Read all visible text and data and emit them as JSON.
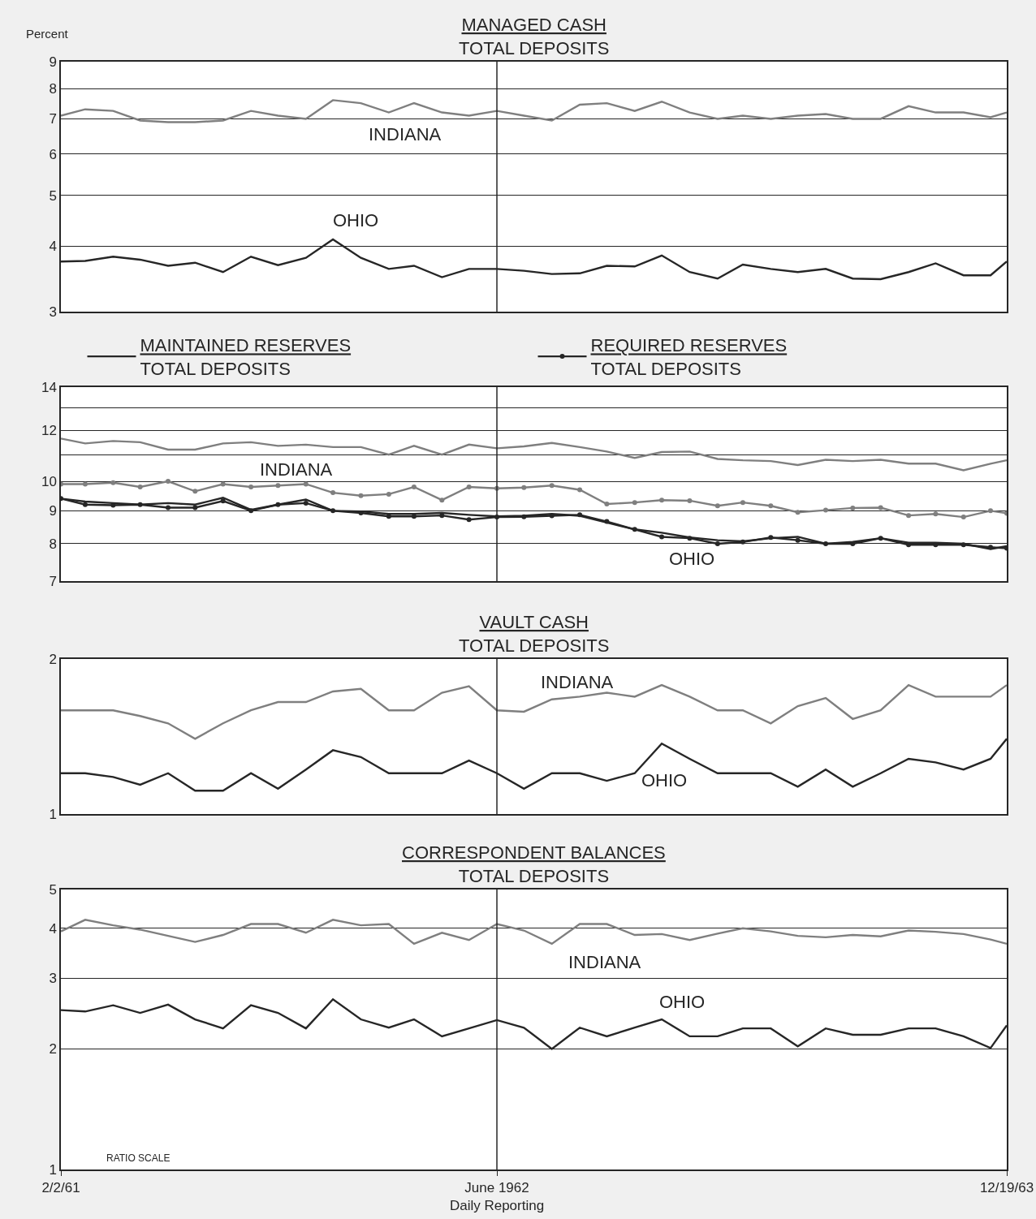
{
  "chart_data": [
    {
      "type": "line",
      "title": "MANAGED CASH\nTOTAL DEPOSITS",
      "ylabel": "Percent",
      "log": true,
      "grid": "y",
      "tick_labels": "y",
      "x": [
        "1961-02-02",
        "1961-03-01",
        "1961-04-01",
        "1961-05-01",
        "1961-06-01",
        "1961-07-01",
        "1961-08-01",
        "1961-09-01",
        "1961-10-01",
        "1961-11-01",
        "1961-12-01",
        "1962-01-01",
        "1962-02-01",
        "1962-03-01",
        "1962-04-01",
        "1962-05-01",
        "1962-06-01",
        "1962-07-01",
        "1962-08-01",
        "1962-09-01",
        "1962-10-01",
        "1962-11-01",
        "1962-12-01",
        "1963-01-01",
        "1963-02-01",
        "1963-03-01",
        "1963-04-01",
        "1963-05-01",
        "1963-06-01",
        "1963-07-01",
        "1963-08-01",
        "1963-09-01",
        "1963-10-01",
        "1963-11-01",
        "1963-12-01",
        "1963-12-19"
      ],
      "xlim": [
        "1961-02-02",
        "1963-12-19"
      ],
      "ylim": [
        3,
        9
      ],
      "yticks": [
        3,
        4,
        5,
        6,
        7,
        8,
        9
      ],
      "ref_lines": [
        {
          "axis": "x",
          "value": "1962-06-01"
        }
      ],
      "annotations": [
        "INDIANA",
        "OHIO"
      ],
      "series": [
        {
          "color": "#7f7f7f",
          "values": [
            7.1,
            7.3,
            7.25,
            6.95,
            6.9,
            6.9,
            6.95,
            7.25,
            7.1,
            7.0,
            7.6,
            7.5,
            7.2,
            7.5,
            7.2,
            7.1,
            7.25,
            7.1,
            6.95,
            7.45,
            7.5,
            7.25,
            7.55,
            7.2,
            7.0,
            7.1,
            7.0,
            7.1,
            7.15,
            7.0,
            7.0,
            7.4,
            7.2,
            7.2,
            7.05,
            7.2
          ]
        },
        {
          "color": "#262626",
          "values": [
            3.74,
            3.75,
            3.82,
            3.77,
            3.67,
            3.72,
            3.57,
            3.82,
            3.68,
            3.8,
            4.12,
            3.8,
            3.62,
            3.67,
            3.49,
            3.62,
            3.62,
            3.59,
            3.54,
            3.55,
            3.67,
            3.66,
            3.84,
            3.57,
            3.47,
            3.69,
            3.62,
            3.57,
            3.62,
            3.47,
            3.46,
            3.57,
            3.71,
            3.52,
            3.52,
            3.74
          ]
        }
      ]
    },
    {
      "type": "line",
      "log": true,
      "grid": "y",
      "tick_labels": "y",
      "legend": "top",
      "x": [
        "1961-02-02",
        "1961-03-01",
        "1961-04-01",
        "1961-05-01",
        "1961-06-01",
        "1961-07-01",
        "1961-08-01",
        "1961-09-01",
        "1961-10-01",
        "1961-11-01",
        "1961-12-01",
        "1962-01-01",
        "1962-02-01",
        "1962-03-01",
        "1962-04-01",
        "1962-05-01",
        "1962-06-01",
        "1962-07-01",
        "1962-08-01",
        "1962-09-01",
        "1962-10-01",
        "1962-11-01",
        "1962-12-01",
        "1963-01-01",
        "1963-02-01",
        "1963-03-01",
        "1963-04-01",
        "1963-05-01",
        "1963-06-01",
        "1963-07-01",
        "1963-08-01",
        "1963-09-01",
        "1963-10-01",
        "1963-11-01",
        "1963-12-01",
        "1963-12-19"
      ],
      "xlim": [
        "1961-02-02",
        "1963-12-19"
      ],
      "ylim": [
        7,
        14
      ],
      "yticks": [
        7,
        8,
        9,
        10,
        {
          "value": 11,
          "label": null
        },
        12,
        {
          "value": 13,
          "label": null
        },
        14
      ],
      "ref_lines": [
        {
          "axis": "x",
          "value": "1962-06-01"
        }
      ],
      "annotations": [
        "INDIANA",
        "OHIO"
      ],
      "series": [
        {
          "name": "MAINTAINED RESERVES\nTOTAL DEPOSITS",
          "color": "#262626",
          "values": [
            9.4,
            9.3,
            9.25,
            9.2,
            9.25,
            9.2,
            9.43,
            9.03,
            9.2,
            9.37,
            9.0,
            8.98,
            8.9,
            8.9,
            8.93,
            8.87,
            8.82,
            8.84,
            8.9,
            8.84,
            8.63,
            8.42,
            8.32,
            8.18,
            8.1,
            8.07,
            8.16,
            8.2,
            8.0,
            8.05,
            8.16,
            8.03,
            8.03,
            8.0,
            7.85,
            7.93
          ]
        },
        {
          "color": "#7f7f7f",
          "values": [
            11.65,
            11.45,
            11.55,
            11.5,
            11.2,
            11.2,
            11.45,
            11.5,
            11.35,
            11.4,
            11.3,
            11.3,
            11.0,
            11.35,
            11.0,
            11.4,
            11.25,
            11.33,
            11.47,
            11.3,
            11.12,
            10.87,
            11.1,
            11.12,
            10.83,
            10.78,
            10.75,
            10.6,
            10.8,
            10.75,
            10.8,
            10.65,
            10.65,
            10.4,
            10.65,
            10.78
          ]
        },
        {
          "name": "REQUIRED RESERVES\nTOTAL DEPOSITS",
          "color": "#262626",
          "marker": "circle",
          "values": [
            9.4,
            9.2,
            9.18,
            9.2,
            9.1,
            9.1,
            9.32,
            9.0,
            9.2,
            9.25,
            9.0,
            8.93,
            8.82,
            8.82,
            8.85,
            8.72,
            8.8,
            8.81,
            8.84,
            8.87,
            8.66,
            8.42,
            8.2,
            8.16,
            8.0,
            8.05,
            8.18,
            8.1,
            8.0,
            8.0,
            8.16,
            7.97,
            7.97,
            7.97,
            7.9,
            7.87
          ]
        },
        {
          "color": "#7f7f7f",
          "marker": "circle",
          "values": [
            9.9,
            9.9,
            9.95,
            9.8,
            10.0,
            9.65,
            9.9,
            9.8,
            9.85,
            9.9,
            9.6,
            9.5,
            9.55,
            9.8,
            9.35,
            9.8,
            9.75,
            9.78,
            9.85,
            9.7,
            9.22,
            9.27,
            9.35,
            9.33,
            9.16,
            9.27,
            9.16,
            8.95,
            9.02,
            9.09,
            9.1,
            8.85,
            8.9,
            8.8,
            9.0,
            8.92
          ]
        }
      ]
    },
    {
      "type": "line",
      "title": "VAULT CASH\nTOTAL DEPOSITS",
      "log": true,
      "tick_labels": "y",
      "x": [
        "1961-02-02",
        "1961-03-01",
        "1961-04-01",
        "1961-05-01",
        "1961-06-01",
        "1961-07-01",
        "1961-08-01",
        "1961-09-01",
        "1961-10-01",
        "1961-11-01",
        "1961-12-01",
        "1962-01-01",
        "1962-02-01",
        "1962-03-01",
        "1962-04-01",
        "1962-05-01",
        "1962-06-01",
        "1962-07-01",
        "1962-08-01",
        "1962-09-01",
        "1962-10-01",
        "1962-11-01",
        "1962-12-01",
        "1963-01-01",
        "1963-02-01",
        "1963-03-01",
        "1963-04-01",
        "1963-05-01",
        "1963-06-01",
        "1963-07-01",
        "1963-08-01",
        "1963-09-01",
        "1963-10-01",
        "1963-11-01",
        "1963-12-01",
        "1963-12-19"
      ],
      "xlim": [
        "1961-02-02",
        "1963-12-19"
      ],
      "ylim": [
        1,
        2
      ],
      "yticks": [
        1,
        2
      ],
      "ref_lines": [
        {
          "axis": "x",
          "value": "1962-06-01"
        }
      ],
      "annotations": [
        "INDIANA",
        "OHIO"
      ],
      "series": [
        {
          "color": "#7f7f7f",
          "values": [
            1.59,
            1.59,
            1.59,
            1.55,
            1.5,
            1.4,
            1.5,
            1.59,
            1.65,
            1.65,
            1.73,
            1.75,
            1.59,
            1.59,
            1.72,
            1.77,
            1.59,
            1.58,
            1.67,
            1.69,
            1.72,
            1.69,
            1.78,
            1.69,
            1.59,
            1.59,
            1.5,
            1.62,
            1.68,
            1.53,
            1.59,
            1.78,
            1.69,
            1.69,
            1.69,
            1.78
          ]
        },
        {
          "color": "#262626",
          "values": [
            1.2,
            1.2,
            1.18,
            1.14,
            1.2,
            1.11,
            1.11,
            1.2,
            1.12,
            1.22,
            1.33,
            1.29,
            1.2,
            1.2,
            1.2,
            1.27,
            1.2,
            1.12,
            1.2,
            1.2,
            1.16,
            1.2,
            1.37,
            1.28,
            1.2,
            1.2,
            1.2,
            1.13,
            1.22,
            1.13,
            1.2,
            1.28,
            1.26,
            1.22,
            1.28,
            1.4
          ]
        }
      ]
    },
    {
      "type": "line",
      "title": "CORRESPONDENT BALANCES\nTOTAL DEPOSITS",
      "log": true,
      "grid": "y",
      "x": [
        "1961-02-02",
        "1961-03-01",
        "1961-04-01",
        "1961-05-01",
        "1961-06-01",
        "1961-07-01",
        "1961-08-01",
        "1961-09-01",
        "1961-10-01",
        "1961-11-01",
        "1961-12-01",
        "1962-01-01",
        "1962-02-01",
        "1962-03-01",
        "1962-04-01",
        "1962-05-01",
        "1962-06-01",
        "1962-07-01",
        "1962-08-01",
        "1962-09-01",
        "1962-10-01",
        "1962-11-01",
        "1962-12-01",
        "1963-01-01",
        "1963-02-01",
        "1963-03-01",
        "1963-04-01",
        "1963-05-01",
        "1963-06-01",
        "1963-07-01",
        "1963-08-01",
        "1963-09-01",
        "1963-10-01",
        "1963-11-01",
        "1963-12-01",
        "1963-12-19"
      ],
      "xlim": [
        "1961-02-02",
        "1963-12-19"
      ],
      "xticks": [
        {
          "value": "1961-02-02",
          "label": "2/2/61"
        },
        {
          "value": "1962-06-01",
          "label": "June 1962\nDaily Reporting"
        },
        {
          "value": "1963-12-19",
          "label": "12/19/63"
        }
      ],
      "ylim": [
        1,
        5
      ],
      "yticks": [
        1,
        2,
        3,
        4,
        5
      ],
      "ref_lines": [
        {
          "axis": "x",
          "value": "1962-06-01"
        }
      ],
      "annotations": [
        "INDIANA",
        "OHIO",
        "RATIO SCALE"
      ],
      "series": [
        {
          "color": "#7f7f7f",
          "values": [
            3.93,
            4.2,
            4.07,
            3.97,
            3.83,
            3.7,
            3.85,
            4.1,
            4.1,
            3.9,
            4.2,
            4.07,
            4.1,
            3.66,
            3.9,
            3.74,
            4.1,
            3.95,
            3.66,
            4.1,
            4.1,
            3.85,
            3.87,
            3.74,
            3.88,
            4.0,
            3.93,
            3.83,
            3.8,
            3.85,
            3.82,
            3.95,
            3.92,
            3.87,
            3.75,
            3.66
          ]
        },
        {
          "color": "#262626",
          "values": [
            2.5,
            2.48,
            2.57,
            2.46,
            2.58,
            2.37,
            2.25,
            2.57,
            2.46,
            2.25,
            2.66,
            2.37,
            2.26,
            2.37,
            2.15,
            2.25,
            2.36,
            2.26,
            2.0,
            2.26,
            2.15,
            2.26,
            2.37,
            2.15,
            2.15,
            2.25,
            2.25,
            2.03,
            2.25,
            2.17,
            2.17,
            2.25,
            2.25,
            2.15,
            2.01,
            2.29
          ]
        }
      ]
    }
  ]
}
